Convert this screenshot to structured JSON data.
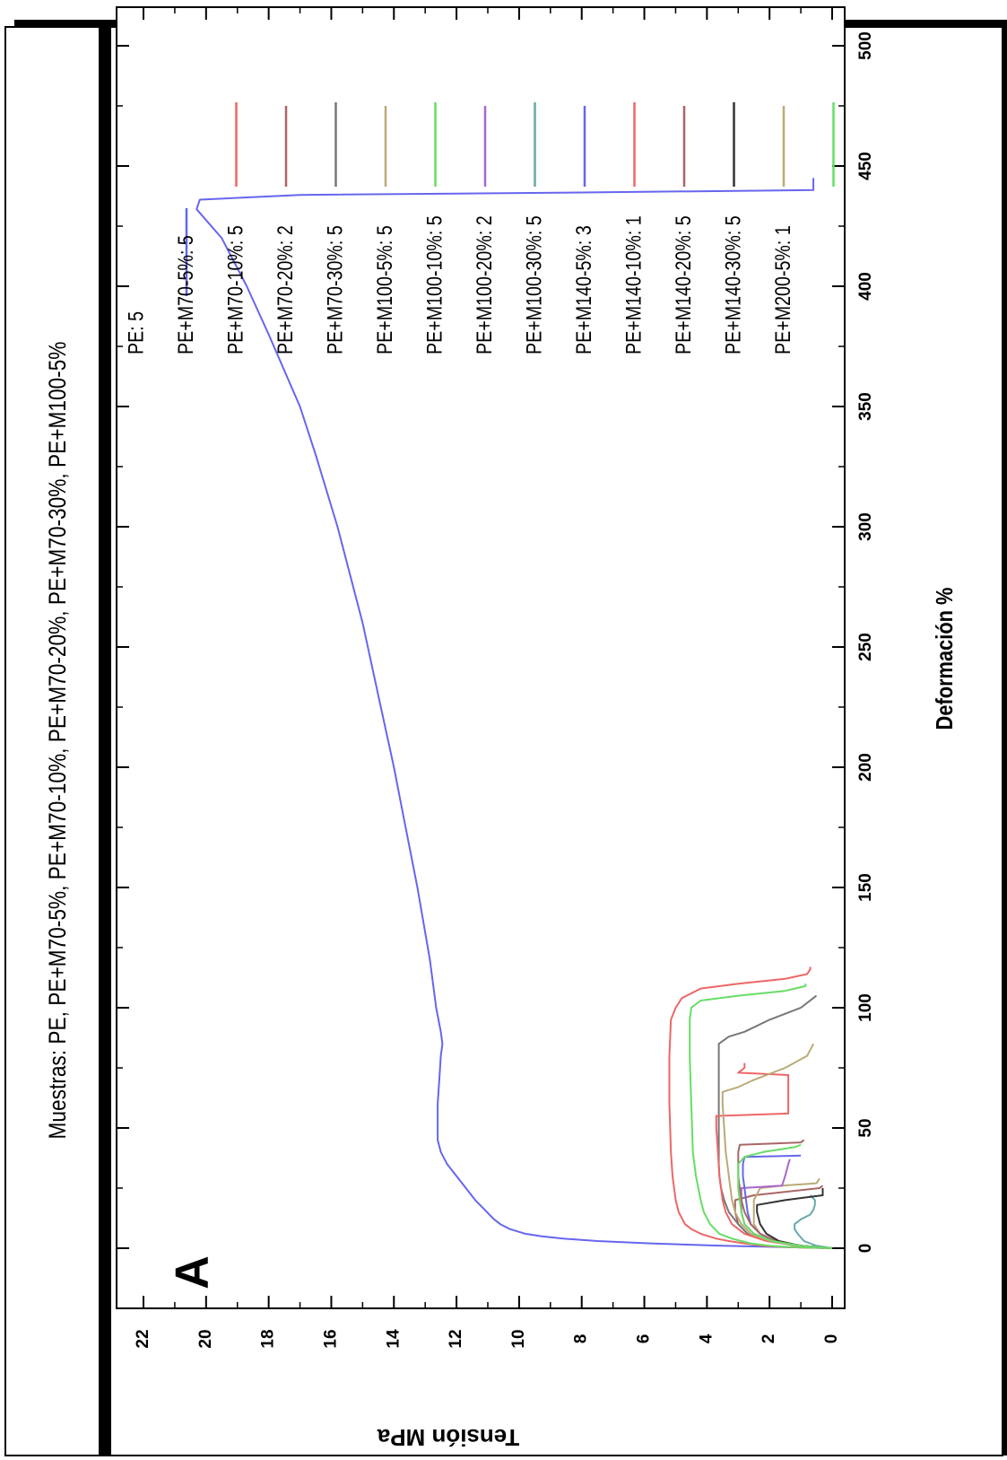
{
  "chart_data": {
    "type": "line",
    "orientation": "rotated 90 degrees counter-clockwise",
    "title": "Muestras: PE, PE+M70-5%, PE+M70-10%, PE+M70-20%, PE+M70-30%, PE+M100-5%",
    "panel_label": "A",
    "xlabel": "Deformación %",
    "ylabel": "Tensión MPa",
    "xlim": [
      -25,
      510
    ],
    "ylim": [
      -0.5,
      23
    ],
    "x_ticks": [
      0,
      50,
      100,
      150,
      200,
      250,
      300,
      350,
      400,
      450,
      500
    ],
    "y_ticks": [
      0,
      2,
      4,
      6,
      8,
      10,
      12,
      14,
      16,
      18,
      20,
      22
    ],
    "grid": false,
    "legend_position": "top-right",
    "series": [
      {
        "name": "PE: 5",
        "color": "#6666ee",
        "x": [
          0,
          0.5,
          1,
          2,
          3,
          4,
          5,
          6,
          8,
          10,
          12,
          14,
          16,
          18,
          20,
          25,
          30,
          35,
          40,
          45,
          50,
          60,
          70,
          80,
          85,
          90,
          100,
          120,
          150,
          180,
          200,
          230,
          260,
          300,
          330,
          350,
          380,
          400,
          420,
          432,
          436,
          438,
          439,
          440,
          445
        ],
        "y": [
          0,
          1.5,
          3.5,
          5.8,
          7.5,
          8.6,
          9.3,
          9.8,
          10.3,
          10.6,
          10.8,
          10.95,
          11.1,
          11.25,
          11.4,
          11.7,
          12.0,
          12.3,
          12.5,
          12.6,
          12.6,
          12.6,
          12.55,
          12.5,
          12.45,
          12.5,
          12.65,
          12.85,
          13.25,
          13.7,
          14.0,
          14.5,
          15.0,
          15.8,
          16.5,
          17.0,
          18.0,
          18.7,
          19.5,
          20.3,
          20.2,
          17,
          8,
          0.6,
          0.6
        ]
      },
      {
        "name": "PE+M70-5%: 5",
        "color": "#ee6666",
        "x": [
          0,
          0.3,
          0.6,
          1,
          2,
          3,
          4,
          6,
          8,
          10,
          15,
          20,
          30,
          40,
          60,
          80,
          95,
          100,
          104,
          108,
          110,
          112,
          114,
          116,
          117
        ],
        "y": [
          0,
          1.0,
          1.7,
          2.2,
          2.8,
          3.3,
          3.7,
          4.2,
          4.5,
          4.7,
          4.9,
          5.0,
          5.1,
          5.15,
          5.2,
          5.2,
          5.15,
          5.0,
          4.8,
          4.2,
          3.0,
          1.5,
          0.8,
          0.7,
          0.7
        ]
      },
      {
        "name": "PE+M70-10%: 5",
        "color": "#aa6666",
        "x": [
          0,
          1,
          3,
          6,
          10,
          15,
          20,
          22,
          25,
          26
        ],
        "y": [
          0,
          1.1,
          2.0,
          2.7,
          3.0,
          3.1,
          3.1,
          2.5,
          0.4,
          0.3
        ]
      },
      {
        "name": "PE+M70-20%: 2",
        "color": "#777777",
        "x": [
          0,
          1,
          3,
          6,
          10,
          15,
          20,
          25,
          30,
          35,
          40,
          50,
          60,
          70,
          80,
          85,
          88,
          90,
          95,
          100,
          105
        ],
        "y": [
          0,
          1.1,
          2.0,
          2.7,
          3.0,
          3.3,
          3.45,
          3.55,
          3.6,
          3.62,
          3.62,
          3.62,
          3.62,
          3.62,
          3.62,
          3.62,
          3.3,
          2.8,
          2.0,
          1.0,
          0.5
        ]
      },
      {
        "name": "PE+M70-30%: 5",
        "color": "#bbaa77",
        "x": [
          0,
          1,
          3,
          6,
          10,
          15,
          20,
          25,
          26,
          27,
          29
        ],
        "y": [
          0,
          1.0,
          1.8,
          2.3,
          2.5,
          2.5,
          2.5,
          2.3,
          1.6,
          0.5,
          0.4
        ]
      },
      {
        "name": "PE+M100-5%: 5",
        "color": "#66dd66",
        "x": [
          0,
          0.3,
          0.6,
          1,
          2,
          4,
          6,
          10,
          15,
          20,
          30,
          40,
          60,
          80,
          95,
          100,
          103,
          105,
          107,
          109,
          110
        ],
        "y": [
          0,
          0.8,
          1.5,
          2.0,
          2.6,
          3.2,
          3.6,
          3.9,
          4.1,
          4.2,
          4.35,
          4.45,
          4.5,
          4.55,
          4.55,
          4.5,
          4.2,
          3.0,
          1.5,
          0.85,
          0.85
        ]
      },
      {
        "name": "PE+M100-10%: 5",
        "color": "#aa66cc",
        "x": [
          0,
          1,
          3,
          6,
          10,
          15,
          20,
          25,
          26,
          30,
          35,
          37
        ],
        "y": [
          0,
          1.0,
          1.9,
          2.5,
          2.8,
          2.9,
          2.9,
          2.9,
          1.6,
          1.5,
          1.4,
          1.35
        ]
      },
      {
        "name": "PE+M100-20%: 2",
        "color": "#66aaaa",
        "x": [
          0,
          1,
          3,
          6,
          8,
          10,
          12,
          14,
          16,
          18,
          20,
          22
        ],
        "y": [
          0,
          0.5,
          0.9,
          1.1,
          1.2,
          1.2,
          1.0,
          0.7,
          0.6,
          0.55,
          0.55,
          0.7
        ]
      },
      {
        "name": "PE+M100-30%: 5",
        "color": "#6666ee",
        "x": [
          0,
          1,
          3,
          6,
          10,
          15,
          20,
          25,
          30,
          35,
          38,
          38.5
        ],
        "y": [
          0,
          1.0,
          1.8,
          2.3,
          2.6,
          2.7,
          2.75,
          2.8,
          2.85,
          2.85,
          2.8,
          1.0
        ]
      },
      {
        "name": "PE+M140-5%: 3",
        "color": "#ee6666",
        "x": [
          0,
          1,
          3,
          6,
          10,
          15,
          20,
          25,
          30,
          40,
          50,
          55,
          56,
          58,
          60,
          65,
          70,
          72,
          73,
          75,
          77
        ],
        "y": [
          0,
          1.1,
          2.1,
          2.8,
          3.2,
          3.4,
          3.5,
          3.55,
          3.6,
          3.65,
          3.7,
          3.7,
          1.4,
          1.4,
          1.4,
          1.4,
          1.4,
          1.4,
          3.0,
          2.8,
          2.8
        ]
      },
      {
        "name": "PE+M140-10%: 1",
        "color": "#aa6666",
        "x": [
          0,
          1,
          3,
          6,
          10,
          15,
          20,
          25,
          30,
          35,
          40,
          43,
          44,
          45
        ],
        "y": [
          0,
          1.0,
          1.8,
          2.3,
          2.6,
          2.8,
          2.9,
          2.95,
          3.0,
          3.0,
          3.0,
          2.95,
          1.0,
          0.9
        ]
      },
      {
        "name": "PE+M140-20%: 5",
        "color": "#333333",
        "x": [
          0,
          1,
          3,
          6,
          10,
          15,
          18,
          20,
          22,
          25
        ],
        "y": [
          0,
          1.0,
          1.7,
          2.1,
          2.3,
          2.4,
          2.4,
          1.5,
          0.3,
          0.3
        ]
      },
      {
        "name": "PE+M140-30%: 5",
        "color": "#bbaa77",
        "x": [
          0,
          1,
          3,
          6,
          10,
          15,
          20,
          25,
          30,
          35,
          40,
          50,
          60,
          65,
          67,
          70,
          75,
          80,
          85
        ],
        "y": [
          0,
          1.1,
          2.0,
          2.6,
          2.9,
          3.1,
          3.2,
          3.25,
          3.3,
          3.35,
          3.4,
          3.45,
          3.5,
          3.5,
          3.0,
          2.5,
          1.5,
          0.8,
          0.6
        ]
      },
      {
        "name": "PE+M200-5%: 1",
        "color": "#66dd66",
        "x": [
          0,
          1,
          3,
          6,
          10,
          15,
          20,
          25,
          30,
          35,
          38,
          40,
          42,
          43
        ],
        "y": [
          0,
          1.0,
          1.9,
          2.5,
          2.8,
          2.9,
          2.95,
          3.0,
          3.0,
          3.0,
          2.8,
          2.2,
          1.2,
          1.0
        ]
      }
    ]
  }
}
